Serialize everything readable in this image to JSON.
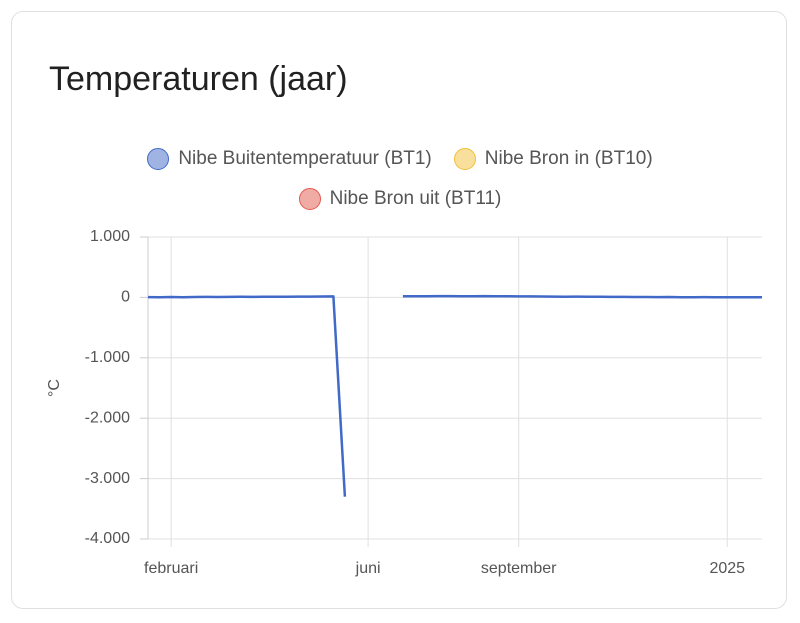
{
  "chart_data": {
    "type": "line",
    "title": "Temperaturen (jaar)",
    "y_label": "°C",
    "categories": [
      null,
      null,
      "februari",
      null,
      null,
      null,
      null,
      null,
      null,
      null,
      null,
      null,
      null,
      null,
      null,
      null,
      null,
      null,
      null,
      "juni",
      null,
      null,
      null,
      null,
      null,
      null,
      null,
      null,
      null,
      null,
      null,
      null,
      "september",
      null,
      null,
      null,
      null,
      null,
      null,
      null,
      null,
      null,
      null,
      null,
      null,
      null,
      null,
      null,
      null,
      null,
      "2025",
      null,
      null,
      null
    ],
    "series": [
      {
        "name": "Nibe Buitentemperatuur (BT1)",
        "color": "#4169c8",
        "values": [
          5,
          3,
          6,
          4,
          7,
          8,
          6,
          9,
          10,
          8,
          11,
          12,
          10,
          13,
          14,
          15,
          16,
          -3300,
          null,
          null,
          null,
          null,
          18,
          20,
          19,
          21,
          22,
          20,
          19,
          21,
          20,
          18,
          17,
          16,
          15,
          14,
          12,
          13,
          11,
          10,
          9,
          8,
          7,
          6,
          5,
          6,
          4,
          3,
          5,
          4,
          2,
          3,
          4,
          2
        ]
      },
      {
        "name": "Nibe Bron in (BT10)",
        "color": "#f2c037",
        "values": [
          null,
          null,
          null,
          null,
          null,
          null,
          null,
          null,
          null,
          null,
          null,
          null,
          null,
          null,
          null,
          null,
          null,
          null,
          null,
          null,
          null,
          null,
          null,
          null,
          null,
          null,
          null,
          null,
          null,
          null,
          null,
          null,
          null,
          null,
          null,
          null,
          null,
          null,
          null,
          null,
          null,
          null,
          null,
          null,
          null,
          null,
          null,
          null,
          null,
          null,
          null,
          null,
          null,
          null
        ]
      },
      {
        "name": "Nibe Bron uit (BT11)",
        "color": "#e3584c",
        "values": [
          null,
          null,
          null,
          null,
          null,
          null,
          null,
          null,
          null,
          null,
          null,
          null,
          null,
          null,
          null,
          null,
          null,
          null,
          null,
          null,
          null,
          null,
          null,
          null,
          null,
          null,
          null,
          null,
          null,
          null,
          null,
          null,
          null,
          null,
          null,
          null,
          null,
          null,
          null,
          null,
          null,
          null,
          null,
          null,
          null,
          null,
          null,
          null,
          null,
          null,
          null,
          null,
          null,
          null
        ]
      }
    ],
    "ylim": [
      -4000,
      1000
    ],
    "yticks": [
      {
        "value": -4000,
        "label": "-4.000"
      },
      {
        "value": -3000,
        "label": "-3.000"
      },
      {
        "value": -2000,
        "label": "-2.000"
      },
      {
        "value": -1000,
        "label": "-1.000"
      },
      0,
      {
        "value": 1000,
        "label": "1.000"
      }
    ],
    "grid": true
  }
}
